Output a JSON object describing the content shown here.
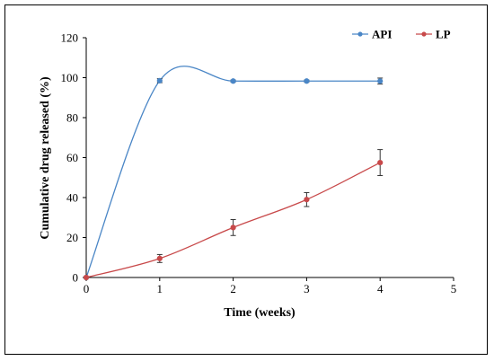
{
  "chart_data": {
    "type": "line",
    "title": "",
    "xlabel": "Time (weeks)",
    "ylabel": "Cumulative  drug released (%)",
    "xlim": [
      0,
      5
    ],
    "ylim": [
      0,
      120
    ],
    "xticks": [
      0,
      1,
      2,
      3,
      4,
      5
    ],
    "yticks": [
      0,
      20,
      40,
      60,
      80,
      100,
      120
    ],
    "grid": false,
    "legend_position": "top-right",
    "series": [
      {
        "name": "API",
        "color": "#4a86c6",
        "smooth": true,
        "x": [
          0,
          1,
          2,
          3,
          4
        ],
        "values": [
          0,
          98.5,
          98.3,
          98.3,
          98.3
        ],
        "error": [
          0,
          1,
          0.5,
          0.5,
          1.5
        ]
      },
      {
        "name": "LP",
        "color": "#c8494a",
        "smooth": true,
        "x": [
          0,
          1,
          2,
          3,
          4
        ],
        "values": [
          0,
          9.5,
          25,
          39,
          57.5
        ],
        "error": [
          0,
          2,
          4,
          3.5,
          6.5
        ]
      }
    ]
  }
}
